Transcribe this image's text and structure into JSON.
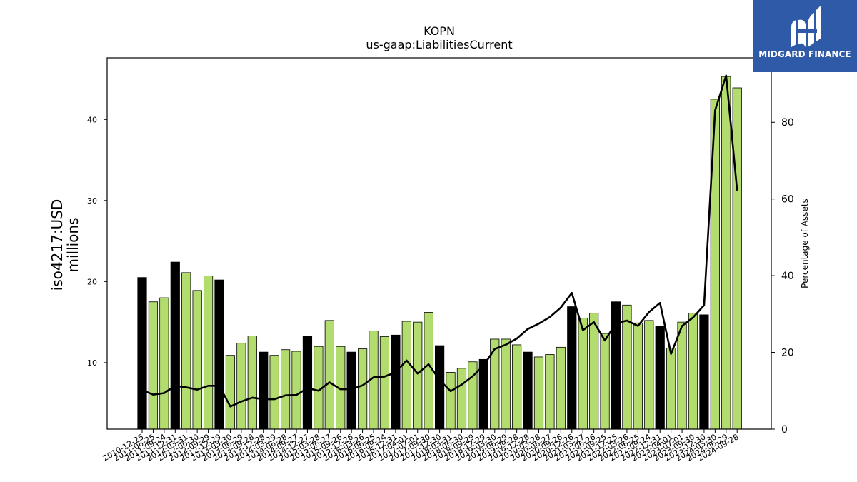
{
  "chart_data": {
    "type": "bar",
    "title": "KOPN",
    "subtitle": "us-gaap:LiabilitiesCurrent",
    "ylabel": "iso4217:USD\nmillions",
    "y2label": "Percentage of Assets",
    "ylim": [
      1.8,
      47.6
    ],
    "y2lim": [
      0,
      96.8
    ],
    "yticks": [
      10,
      20,
      30,
      40
    ],
    "y2ticks": [
      0,
      20,
      40,
      60,
      80
    ],
    "categories": [
      "2010-12-25",
      "2011-06-25",
      "2011-09-24",
      "2011-12-31",
      "2012-03-31",
      "2012-06-30",
      "2012-09-29",
      "2012-12-29",
      "2013-03-30",
      "2013-06-29",
      "2013-09-28",
      "2013-12-28",
      "2014-03-29",
      "2014-06-28",
      "2014-09-27",
      "2014-12-27",
      "2015-03-28",
      "2015-06-27",
      "2015-09-26",
      "2015-12-26",
      "2016-03-26",
      "2016-06-25",
      "2016-09-24",
      "2016-12-31",
      "2017-04-01",
      "2017-07-01",
      "2017-09-30",
      "2017-12-30",
      "2018-03-31",
      "2018-06-30",
      "2018-09-29",
      "2018-12-29",
      "2019-03-30",
      "2019-06-29",
      "2019-09-28",
      "2019-12-28",
      "2020-03-28",
      "2020-06-27",
      "2020-09-26",
      "2020-12-26",
      "2021-03-27",
      "2021-06-26",
      "2021-09-25",
      "2021-12-25",
      "2022-03-26",
      "2022-06-25",
      "2022-09-24",
      "2022-12-31",
      "2023-04-01",
      "2023-07-01",
      "2023-09-30",
      "2023-12-30",
      "2024-03-30",
      "2024-06-29",
      "2024-09-28"
    ],
    "xtick_labels": [
      "2010-12-25",
      "2011-06-25",
      "2011-09-24",
      "2011-12-31",
      "2012-03-31",
      "2012-06-30",
      "2012-09-29",
      "2012-12-29",
      "2013-03-30",
      "2013-06-29",
      "2013-09-28",
      "2013-12-28",
      "2014-03-29",
      "2014-06-28",
      "2014-09-27",
      "2014-12-27",
      "2015-03-28",
      "2015-06-27",
      "2015-09-26",
      "2015-12-26",
      "2016-03-26",
      "2016-06-25",
      "2016-09-24",
      "2016-12-31",
      "2017-04-01",
      "2017-07-01",
      "2017-09-30",
      "2017-12-30",
      "2018-03-31",
      "2018-06-30",
      "2018-09-29",
      "2018-12-29",
      "2019-03-30",
      "2019-06-29",
      "2019-09-28",
      "2019-12-28",
      "2020-03-28",
      "2020-06-27",
      "2020-09-26",
      "2020-12-26",
      "2021-03-27",
      "2021-06-26",
      "2021-09-25",
      "2021-12-25",
      "2022-03-26",
      "2022-06-25",
      "2022-09-24",
      "2022-12-31",
      "2023-04-01",
      "2023-07-01",
      "2023-09-30",
      "2023-12-30",
      "2024-03-30",
      "2024-06-29",
      "2024-09-28"
    ],
    "values": [
      20.5,
      17.5,
      18.0,
      22.4,
      21.1,
      18.9,
      20.7,
      20.2,
      10.9,
      12.4,
      13.3,
      11.3,
      10.9,
      11.6,
      11.4,
      13.3,
      12.0,
      15.2,
      12.0,
      11.3,
      11.7,
      13.9,
      13.2,
      13.4,
      15.1,
      15.0,
      16.2,
      12.1,
      8.8,
      9.3,
      10.1,
      10.4,
      12.9,
      12.9,
      12.2,
      11.3,
      10.7,
      11.0,
      11.9,
      16.9,
      15.5,
      16.1,
      13.6,
      17.5,
      17.1,
      14.9,
      15.2,
      14.5,
      11.8,
      15.0,
      16.1,
      15.9,
      42.5,
      45.3,
      43.9
    ],
    "bar_kind": [
      "annual",
      "quarterly",
      "quarterly",
      "annual",
      "quarterly",
      "quarterly",
      "quarterly",
      "annual",
      "quarterly",
      "quarterly",
      "quarterly",
      "annual",
      "quarterly",
      "quarterly",
      "quarterly",
      "annual",
      "quarterly",
      "quarterly",
      "quarterly",
      "annual",
      "quarterly",
      "quarterly",
      "quarterly",
      "annual",
      "quarterly",
      "quarterly",
      "quarterly",
      "annual",
      "quarterly",
      "quarterly",
      "quarterly",
      "annual",
      "quarterly",
      "quarterly",
      "quarterly",
      "annual",
      "quarterly",
      "quarterly",
      "quarterly",
      "annual",
      "quarterly",
      "quarterly",
      "quarterly",
      "annual",
      "quarterly",
      "quarterly",
      "quarterly",
      "annual",
      "quarterly",
      "quarterly",
      "quarterly",
      "annual",
      "quarterly",
      "quarterly",
      "quarterly"
    ],
    "pct_of_assets": [
      10.2,
      9.0,
      9.4,
      11.3,
      10.9,
      10.3,
      11.3,
      11.3,
      5.9,
      7.2,
      8.2,
      7.8,
      7.8,
      8.8,
      8.9,
      10.7,
      10.0,
      12.2,
      10.4,
      10.4,
      11.4,
      13.5,
      13.7,
      14.8,
      17.9,
      14.5,
      16.9,
      12.8,
      9.9,
      11.6,
      13.8,
      16.6,
      20.9,
      22.0,
      23.6,
      26.1,
      27.5,
      29.2,
      31.7,
      35.5,
      25.8,
      27.9,
      23.1,
      27.6,
      28.3,
      26.9,
      30.5,
      32.9,
      19.6,
      26.9,
      29.1,
      32.3,
      83.1,
      92.2,
      62.2
    ],
    "colors": {
      "annual_bar": "#000000",
      "quarterly_bar": "#b2dc6e",
      "bar_edge": "#000000",
      "line": "#000000"
    },
    "grid": false,
    "legend": "none"
  },
  "logo": {
    "text": "MIDGARD FINANCE",
    "background": "#2f5aa8"
  }
}
